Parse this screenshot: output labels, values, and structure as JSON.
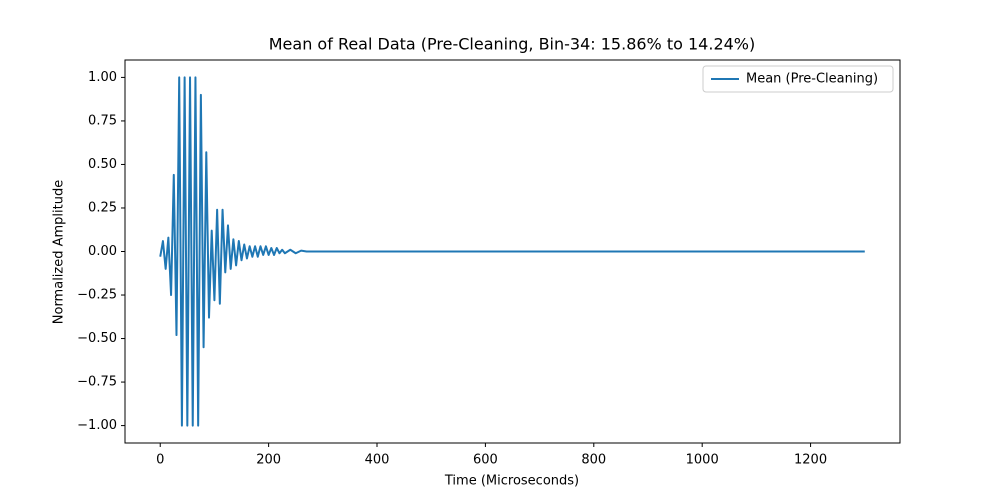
{
  "chart_data": {
    "type": "line",
    "title": "Mean of Real Data (Pre-Cleaning, Bin-34: 15.86% to 14.24%)",
    "xlabel": "Time (Microseconds)",
    "ylabel": "Normalized Amplitude",
    "x": [
      0,
      5,
      10,
      15,
      20,
      25,
      30,
      35,
      40,
      45,
      50,
      55,
      60,
      65,
      70,
      75,
      80,
      85,
      90,
      95,
      100,
      105,
      110,
      115,
      120,
      125,
      130,
      135,
      140,
      145,
      150,
      155,
      160,
      165,
      170,
      175,
      180,
      185,
      190,
      195,
      200,
      205,
      210,
      215,
      220,
      225,
      230,
      240,
      250,
      260,
      270,
      1300
    ],
    "series": [
      {
        "name": "Mean (Pre-Cleaning)",
        "color": "#1f77b4",
        "values": [
          -0.03,
          0.06,
          -0.1,
          0.08,
          -0.25,
          0.44,
          -0.48,
          1.0,
          -1.0,
          1.0,
          -1.0,
          1.0,
          -1.0,
          1.0,
          -1.0,
          0.9,
          -0.55,
          0.57,
          -0.38,
          0.12,
          -0.28,
          0.24,
          -0.3,
          0.24,
          -0.12,
          0.15,
          -0.1,
          0.07,
          -0.08,
          0.06,
          -0.05,
          0.04,
          -0.04,
          0.03,
          -0.03,
          0.03,
          -0.03,
          0.03,
          -0.02,
          0.03,
          -0.02,
          0.02,
          -0.02,
          0.02,
          -0.01,
          0.01,
          -0.01,
          0.01,
          -0.01,
          0.005,
          0,
          0
        ]
      }
    ],
    "xlim": [
      -65,
      1365
    ],
    "xticks": [
      0,
      200,
      400,
      600,
      800,
      1000,
      1200
    ],
    "ylim": [
      -1.1,
      1.1
    ],
    "yticks": [
      {
        "value": -1,
        "label": "−1.00"
      },
      {
        "value": -0.75,
        "label": "−0.75"
      },
      {
        "value": -0.5,
        "label": "−0.50"
      },
      {
        "value": -0.25,
        "label": "−0.25"
      },
      {
        "value": 0,
        "label": "0.00"
      },
      {
        "value": 0.25,
        "label": "0.25"
      },
      {
        "value": 0.5,
        "label": "0.50"
      },
      {
        "value": 0.75,
        "label": "0.75"
      },
      {
        "value": 1,
        "label": "1.00"
      }
    ],
    "legend": "upper right"
  }
}
